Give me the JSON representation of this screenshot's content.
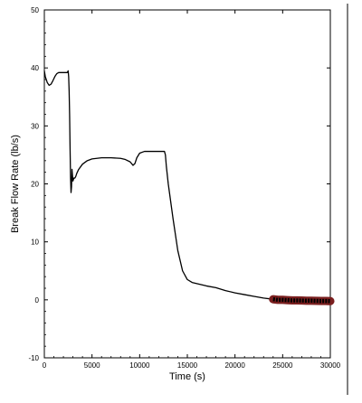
{
  "chart_data": {
    "type": "line",
    "title": "",
    "xlabel": "Time  (s)",
    "ylabel": "Break Flow Rate  (lb/s)",
    "xlim": [
      0,
      30000
    ],
    "ylim": [
      -10,
      50
    ],
    "xticks": [
      0,
      5000,
      10000,
      15000,
      20000,
      25000,
      30000
    ],
    "yticks": [
      -10,
      0,
      10,
      20,
      30,
      40,
      50
    ],
    "grid": false,
    "legend": "none",
    "series": [
      {
        "color": "#000000",
        "x": [
          0,
          100,
          200,
          300,
          500,
          700,
          900,
          1100,
          1300,
          1500,
          2000,
          2400,
          2500,
          2550,
          2600,
          2650,
          2700,
          2750,
          2800,
          2850,
          2900,
          2950,
          3000,
          3100,
          3200,
          3300,
          3400,
          3600,
          4000,
          4500,
          5000,
          6000,
          7000,
          8000,
          8500,
          9000,
          9300,
          9500,
          9700,
          10000,
          10500,
          11000,
          11500,
          12000,
          12400,
          12600,
          12700,
          12800,
          13000,
          13500,
          14000,
          14500,
          15000,
          15500,
          16000,
          17000,
          18000,
          19000,
          20000,
          21000,
          22000,
          23000,
          24000
        ],
        "y": [
          39.5,
          38.5,
          38.0,
          37.5,
          37.0,
          37.2,
          37.8,
          38.5,
          39.0,
          39.2,
          39.2,
          39.2,
          39.5,
          38.5,
          36.0,
          32.0,
          26.0,
          21.0,
          18.5,
          19.5,
          22.5,
          21.5,
          20.5,
          21.0,
          21.0,
          21.3,
          21.8,
          22.5,
          23.4,
          24.0,
          24.3,
          24.5,
          24.5,
          24.4,
          24.2,
          23.8,
          23.2,
          23.5,
          24.5,
          25.3,
          25.6,
          25.6,
          25.6,
          25.6,
          25.6,
          25.6,
          25.0,
          23.0,
          20.0,
          14.0,
          8.5,
          5.0,
          3.5,
          3.0,
          2.8,
          2.4,
          2.1,
          1.6,
          1.2,
          0.9,
          0.6,
          0.3,
          0.1
        ]
      },
      {
        "color": "#7a1f1f",
        "x": [
          24000,
          24500,
          25000,
          25500,
          26000,
          26500,
          27000,
          27500,
          28000,
          28500,
          29000,
          29500,
          30000
        ],
        "y": [
          0.1,
          0.0,
          0.0,
          -0.05,
          -0.1,
          -0.1,
          -0.12,
          -0.15,
          -0.15,
          -0.18,
          -0.2,
          -0.2,
          -0.22
        ],
        "noise_band": 0.4
      }
    ]
  }
}
